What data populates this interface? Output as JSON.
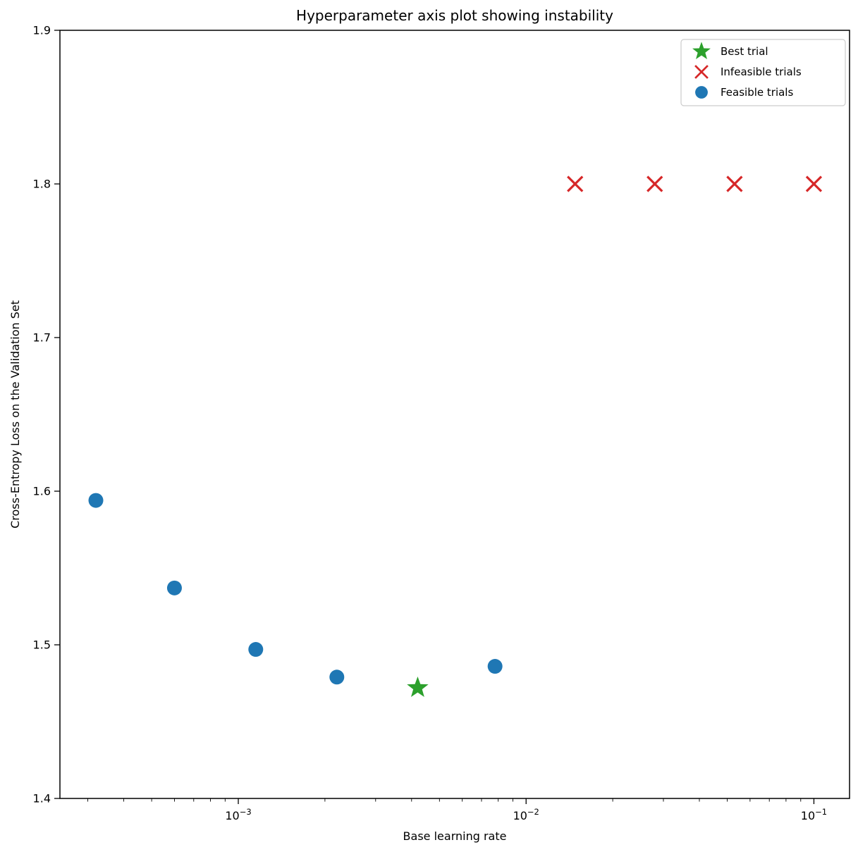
{
  "chart_data": {
    "type": "scatter",
    "title": "Hyperparameter axis plot showing instability",
    "xlabel": "Base learning rate",
    "ylabel": "Cross-Entropy Loss on the Validation Set",
    "x_scale": "log",
    "y_scale": "linear",
    "xlim": [
      0.00024,
      0.133
    ],
    "ylim": [
      1.4,
      1.9
    ],
    "grid": false,
    "x_ticks": [
      {
        "value": 0.001,
        "mantissa": "10",
        "exponent": "−3"
      },
      {
        "value": 0.01,
        "mantissa": "10",
        "exponent": "−2"
      },
      {
        "value": 0.1,
        "mantissa": "10",
        "exponent": "−1"
      }
    ],
    "y_ticks": [
      {
        "value": 1.4,
        "label": "1.4"
      },
      {
        "value": 1.5,
        "label": "1.5"
      },
      {
        "value": 1.6,
        "label": "1.6"
      },
      {
        "value": 1.7,
        "label": "1.7"
      },
      {
        "value": 1.8,
        "label": "1.8"
      },
      {
        "value": 1.9,
        "label": "1.9"
      }
    ],
    "legend": {
      "position": "upper right",
      "entries": [
        {
          "label": "Best trial",
          "marker": "star",
          "color": "#2ca02c"
        },
        {
          "label": "Infeasible trials",
          "marker": "x",
          "color": "#d62728"
        },
        {
          "label": "Feasible trials",
          "marker": "circle",
          "color": "#1f77b4"
        }
      ]
    },
    "series": [
      {
        "name": "Feasible trials",
        "marker": "circle",
        "color": "#1f77b4",
        "points": [
          {
            "x": 0.00032,
            "y": 1.594
          },
          {
            "x": 0.0006,
            "y": 1.537
          },
          {
            "x": 0.00115,
            "y": 1.497
          },
          {
            "x": 0.0022,
            "y": 1.479
          },
          {
            "x": 0.0078,
            "y": 1.486
          }
        ]
      },
      {
        "name": "Best trial",
        "marker": "star",
        "color": "#2ca02c",
        "points": [
          {
            "x": 0.0042,
            "y": 1.472
          }
        ]
      },
      {
        "name": "Infeasible trials",
        "marker": "x",
        "color": "#d62728",
        "points": [
          {
            "x": 0.0148,
            "y": 1.8
          },
          {
            "x": 0.028,
            "y": 1.8
          },
          {
            "x": 0.053,
            "y": 1.8
          },
          {
            "x": 0.1,
            "y": 1.8
          }
        ]
      }
    ]
  }
}
